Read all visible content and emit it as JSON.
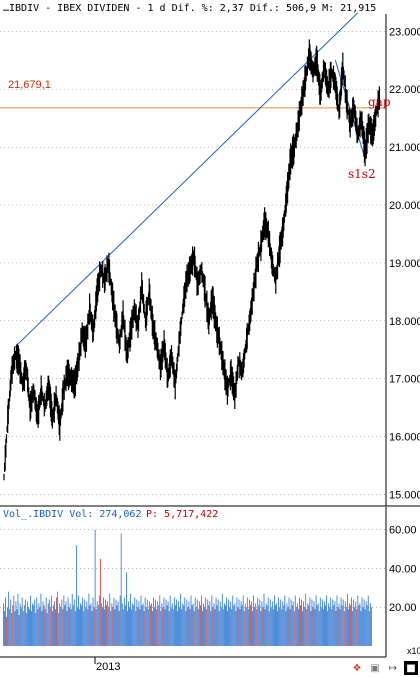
{
  "header": {
    "text": "…IBDIV - IBEX DIVIDEN - 1 d Dif. %: 2,37 Dif.: 506,9 M: 21,915"
  },
  "volume_header": {
    "label": "Vol_.IBDIV Vol: 274,062",
    "p_label": "P: 5,717,422"
  },
  "level_label": "21,679,1",
  "annotations": {
    "gap": "gap",
    "s1s2": "s1s2"
  },
  "scale_note": "x10",
  "colors": {
    "price": "#000000",
    "trend": "#1a5fd0",
    "level": "#e08a3c",
    "annotation": "#cc0000",
    "vol_up": "#2e78d4",
    "vol_down": "#d23c3c",
    "grid": "#888888"
  },
  "chart_data": [
    {
      "type": "line",
      "series": [
        {
          "x": [
            0,
            5,
            10,
            15,
            20,
            25,
            30,
            35,
            40,
            45,
            50,
            55,
            60,
            65,
            70,
            75,
            80,
            85,
            90,
            95,
            100,
            105,
            110,
            115,
            120,
            125,
            130,
            135,
            140,
            145,
            150,
            155,
            160,
            165,
            170,
            175,
            180,
            185,
            190,
            195,
            200,
            205,
            210,
            215,
            220,
            225,
            230,
            235,
            240,
            245,
            250,
            255,
            260,
            265,
            270,
            275,
            280,
            285,
            290,
            295,
            300,
            305,
            310,
            315,
            320,
            325,
            330,
            335,
            340,
            345,
            350,
            355,
            360,
            365,
            370,
            375,
            380,
            385,
            390,
            395,
            400,
            405,
            410,
            415,
            420,
            425,
            430,
            435,
            440,
            445,
            450,
            455,
            460,
            465,
            470,
            475,
            480,
            485,
            490,
            495,
            500,
            505
          ],
          "values": [
            15.3,
            16.3,
            17.1,
            17.4,
            17.3,
            16.9,
            17.2,
            16.5,
            16.8,
            16.3,
            16.8,
            16.5,
            16.9,
            16.3,
            16.7,
            16.2,
            16.8,
            17.1,
            17.0,
            16.9,
            17.3,
            17.8,
            17.6,
            18.2,
            17.8,
            18.5,
            18.9,
            18.7,
            19.0,
            18.5,
            18.0,
            17.6,
            18.1,
            17.4,
            17.8,
            18.2,
            17.9,
            18.6,
            18.0,
            18.5,
            17.9,
            17.6,
            17.2,
            17.6,
            17.0,
            17.4,
            16.9,
            17.6,
            18.2,
            18.7,
            18.9,
            19.1,
            18.6,
            18.9,
            18.5,
            18.0,
            18.4,
            17.9,
            17.6,
            17.2,
            16.8,
            17.1,
            16.7,
            17.3,
            17.1,
            17.6,
            18.0,
            18.5,
            19.0,
            19.3,
            19.7,
            19.5,
            19.0,
            18.7,
            19.2,
            19.6,
            20.2,
            20.8,
            21.0,
            21.4,
            21.8,
            22.2,
            22.6,
            22.3,
            22.5,
            21.9,
            22.4,
            22.0,
            22.3,
            22.1,
            21.6,
            22.4,
            21.8,
            21.4,
            21.7,
            21.2,
            21.5,
            20.9,
            21.4,
            21.2,
            21.6,
            21.9
          ]
        }
      ],
      "yticks": [
        15.0,
        16.0,
        17.0,
        18.0,
        19.0,
        20.0,
        21.0,
        22.0,
        23.0
      ],
      "ytick_labels": [
        "15.000",
        "16.000",
        "17.000",
        "18.000",
        "19.000",
        "20.000",
        "21.000",
        "22.000",
        "23.000"
      ],
      "ylim": [
        14.8,
        23.3
      ],
      "reference_level": 21.679,
      "trendline": {
        "x": [
          15,
          475
        ],
        "values": [
          17.55,
          23.32
        ]
      },
      "channel_line": {
        "x": [
          445,
          485
        ],
        "values": [
          22.5,
          20.8
        ]
      }
    },
    {
      "type": "bar",
      "values": [
        22,
        18,
        25,
        15,
        20,
        28,
        19,
        24,
        17,
        21,
        26,
        18,
        23,
        19,
        27,
        16,
        22,
        20,
        25,
        18,
        21,
        24,
        17,
        23,
        20,
        19,
        26,
        18,
        22,
        21,
        24,
        17,
        25,
        19,
        22,
        20,
        27,
        18,
        23,
        21,
        19,
        25,
        17,
        22,
        24,
        20,
        26,
        18,
        21,
        23,
        19,
        25,
        28,
        17,
        22,
        20,
        24,
        19,
        26,
        21,
        23,
        18,
        25,
        20,
        22,
        19,
        27,
        21,
        24,
        18,
        23,
        20,
        26,
        19,
        22,
        21,
        25,
        18,
        24,
        20,
        23,
        19,
        27,
        21,
        22,
        18,
        25,
        20,
        24,
        19,
        23,
        21,
        26,
        18,
        22,
        20,
        25,
        19,
        24,
        21,
        23,
        20,
        27,
        18,
        22,
        20,
        25,
        19,
        24,
        21,
        23,
        18,
        26,
        20,
        22,
        19,
        25,
        21,
        24,
        18,
        23,
        20,
        27,
        19,
        22,
        21,
        25,
        18,
        24,
        20,
        23,
        19,
        26,
        21,
        22,
        18,
        25,
        20,
        24,
        19,
        23,
        21,
        22,
        18,
        25,
        20,
        24,
        19,
        23,
        21,
        26,
        18,
        22,
        20,
        25,
        19,
        24,
        21,
        23,
        18,
        26,
        20,
        22,
        19,
        25,
        21,
        24,
        18,
        23,
        20,
        27,
        19,
        22,
        21,
        25,
        18,
        24,
        20,
        23,
        19,
        26,
        21,
        22,
        18,
        25,
        20,
        24,
        19,
        23,
        21,
        26,
        18,
        22,
        20,
        25,
        19,
        24,
        21,
        23,
        18,
        26,
        20,
        22,
        19,
        25,
        21,
        24,
        18,
        23,
        20,
        27,
        19,
        22,
        21,
        25,
        18,
        24,
        20,
        23,
        19,
        26,
        21,
        22,
        18,
        25,
        20,
        24,
        19,
        23,
        21,
        26,
        18,
        22,
        20,
        25,
        19,
        24,
        21,
        23,
        18,
        26,
        20,
        22,
        19,
        25,
        21,
        24,
        18,
        23,
        20,
        27,
        19,
        22,
        21,
        25,
        18,
        24,
        20,
        23,
        19,
        26,
        21,
        22,
        18,
        25,
        20,
        24,
        19,
        23,
        21,
        26,
        18,
        22,
        20,
        25,
        19,
        24,
        21,
        23,
        18,
        26,
        20,
        22,
        19,
        25,
        21,
        24,
        18,
        23,
        20,
        27,
        19,
        22,
        21,
        25,
        18,
        24,
        20,
        23,
        19,
        26,
        21,
        22,
        18,
        25,
        20,
        24,
        19,
        23,
        21,
        26,
        18,
        22,
        20,
        25,
        19,
        24,
        21,
        23,
        18,
        26,
        20,
        22,
        19,
        25,
        21,
        24,
        18,
        23,
        20,
        27,
        19,
        22,
        21,
        25,
        18,
        24,
        20,
        23,
        19,
        26,
        21,
        22,
        18,
        25,
        20,
        24,
        19,
        23,
        21,
        26,
        18,
        22,
        20
      ],
      "spikes": {
        "70": 52,
        "88": 60,
        "93": 45,
        "113": 58,
        "118": 38
      },
      "down_color_indices": [
        3,
        9,
        15,
        21,
        27,
        33,
        39,
        45,
        51,
        57,
        63,
        69,
        75,
        81,
        87,
        93,
        99,
        105,
        111,
        117,
        123,
        129,
        135,
        141,
        147,
        153,
        159,
        165,
        171,
        177,
        183,
        189,
        195,
        201,
        207,
        213,
        219,
        225,
        231,
        237,
        243,
        249,
        255,
        261,
        267,
        273,
        279,
        285,
        291,
        297,
        303,
        309,
        315,
        321,
        327,
        333,
        339
      ],
      "yticks": [
        20.0,
        40.0,
        60.0
      ],
      "ytick_labels": [
        "20.00",
        "40.00",
        "60.00"
      ],
      "ylim": [
        0,
        65
      ],
      "xtick_labels": [
        "2013"
      ],
      "xtick_positions": [
        95
      ]
    }
  ]
}
